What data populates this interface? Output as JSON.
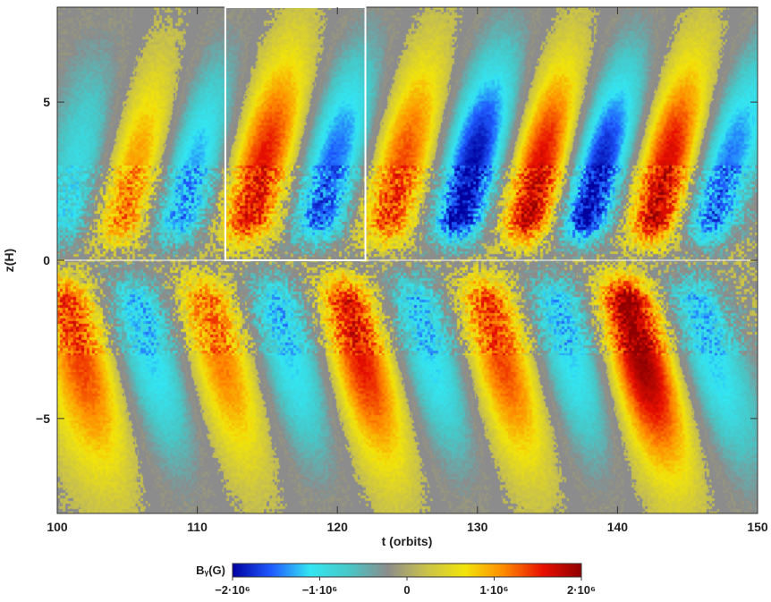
{
  "chart_data": {
    "type": "heatmap",
    "title": "",
    "xlabel": "t (orbits)",
    "ylabel": "z(H)",
    "xlim": [
      100,
      150
    ],
    "ylim": [
      -8,
      8
    ],
    "x_ticks": [
      100,
      110,
      120,
      130,
      140,
      150
    ],
    "y_ticks": [
      -5,
      0,
      5
    ],
    "x_tick_labels": [
      "100",
      "110",
      "120",
      "130",
      "140",
      "150"
    ],
    "y_tick_labels": [
      "−5",
      "0",
      "5"
    ],
    "colorbar": {
      "label": "Bᵧ(G)",
      "range": [
        -2000000.0,
        2000000.0
      ],
      "ticks": [
        -2000000.0,
        -1000000.0,
        0,
        1000000.0,
        2000000.0
      ],
      "tick_labels": [
        "−2·10⁶",
        "−1·10⁶",
        "0",
        "1·10⁶",
        "2·10⁶"
      ],
      "colors": [
        "#0000a0",
        "#1f5bff",
        "#33e6f2",
        "#48c7c7",
        "#8c8c8c",
        "#c9c24a",
        "#f2e40a",
        "#ff8a00",
        "#e81000",
        "#900000"
      ]
    },
    "highlight_box": {
      "t_range": [
        112,
        122
      ],
      "z_range": [
        0,
        8
      ]
    },
    "field_pattern": {
      "description_free": true,
      "upper_bands": [
        {
          "t0": 100,
          "sign": -1,
          "amp": 0.5
        },
        {
          "t0": 104,
          "sign": 1,
          "amp": 0.6
        },
        {
          "t0": 108,
          "sign": -1,
          "amp": 0.7
        },
        {
          "t0": 113,
          "sign": 1,
          "amp": 0.8
        },
        {
          "t0": 118,
          "sign": -1,
          "amp": 0.8
        },
        {
          "t0": 123,
          "sign": 1,
          "amp": 0.7
        },
        {
          "t0": 128,
          "sign": -1,
          "amp": 1.0
        },
        {
          "t0": 133,
          "sign": 1,
          "amp": 0.9
        },
        {
          "t0": 137,
          "sign": -1,
          "amp": 1.0
        },
        {
          "t0": 142,
          "sign": 1,
          "amp": 0.9
        },
        {
          "t0": 146,
          "sign": -1,
          "amp": 0.8
        }
      ],
      "lower_bands": [
        {
          "t0": 100,
          "sign": 1,
          "amp": 0.7
        },
        {
          "t0": 105,
          "sign": -1,
          "amp": 0.6
        },
        {
          "t0": 110,
          "sign": 1,
          "amp": 0.6
        },
        {
          "t0": 115,
          "sign": -1,
          "amp": 0.6
        },
        {
          "t0": 120,
          "sign": 1,
          "amp": 0.8
        },
        {
          "t0": 125,
          "sign": -1,
          "amp": 0.6
        },
        {
          "t0": 130,
          "sign": 1,
          "amp": 0.7
        },
        {
          "t0": 135,
          "sign": -1,
          "amp": 0.6
        },
        {
          "t0": 140,
          "sign": 1,
          "amp": 1.0
        },
        {
          "t0": 145,
          "sign": -1,
          "amp": 0.6
        }
      ]
    }
  }
}
